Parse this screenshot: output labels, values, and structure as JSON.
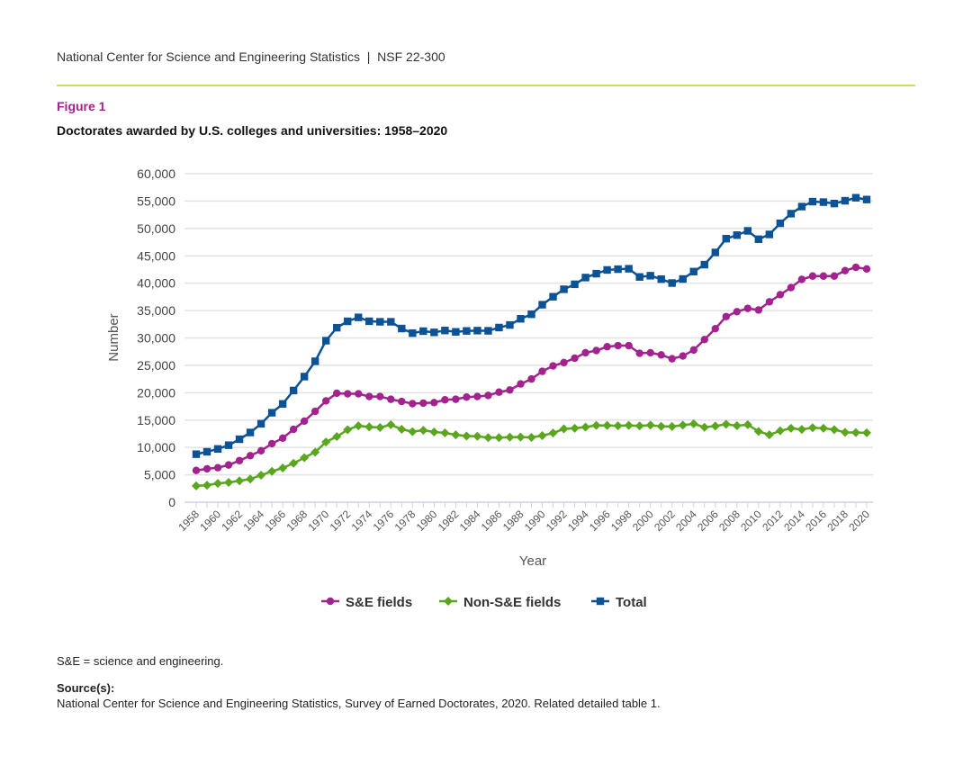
{
  "header": {
    "text": "National Center for Science and Engineering Statistics  |  NSF 22-300"
  },
  "figure": {
    "label": "Figure 1",
    "title": "Doctorates awarded by U.S. colleges and universities: 1958–2020"
  },
  "notes": {
    "abbrev": "S&E = science and engineering.",
    "source_label": "Source(s):",
    "source_text": "National Center for Science and Engineering Statistics, Survey of Earned Doctorates, 2020. Related detailed table 1."
  },
  "chart_data": {
    "type": "line",
    "xlabel": "Year",
    "ylabel": "Number",
    "ylim": [
      0,
      60000
    ],
    "xlim": [
      1958,
      2020
    ],
    "yticks": [
      "0",
      "5,000",
      "10,000",
      "15,000",
      "20,000",
      "25,000",
      "30,000",
      "35,000",
      "40,000",
      "45,000",
      "50,000",
      "55,000",
      "60,000"
    ],
    "grid": true,
    "legend_position": "bottom",
    "x_start": 1958,
    "series": [
      {
        "name": "S&E fields",
        "color": "#a3238e",
        "marker": "circle",
        "values": [
          5800,
          6100,
          6300,
          6800,
          7600,
          8500,
          9400,
          10700,
          11700,
          13300,
          14800,
          16600,
          18500,
          19900,
          19800,
          19800,
          19300,
          19300,
          18800,
          18400,
          18000,
          18100,
          18200,
          18700,
          18800,
          19200,
          19300,
          19500,
          20100,
          20500,
          21600,
          22500,
          23900,
          24900,
          25500,
          26300,
          27300,
          27700,
          28400,
          28600,
          28600,
          27200,
          27300,
          26900,
          26200,
          26700,
          27800,
          29700,
          31700,
          33900,
          34800,
          35400,
          35100,
          36600,
          37900,
          39200,
          40700,
          41300,
          41300,
          41300,
          42300,
          42900,
          42600
        ]
      },
      {
        "name": "Non-S&E fields",
        "color": "#5aa61e",
        "marker": "diamond",
        "values": [
          2970,
          3110,
          3430,
          3610,
          3900,
          4230,
          4930,
          5640,
          6250,
          7100,
          8140,
          9140,
          11000,
          11970,
          13240,
          13960,
          13750,
          13650,
          14150,
          13320,
          12880,
          13140,
          12820,
          12660,
          12310,
          12080,
          12040,
          11800,
          11800,
          11870,
          11900,
          11830,
          12170,
          12630,
          13390,
          13500,
          13730,
          14040,
          14020,
          13960,
          14040,
          13940,
          14070,
          13840,
          13830,
          14070,
          14320,
          13690,
          13920,
          14230,
          13980,
          14160,
          12930,
          12310,
          13040,
          13500,
          13290,
          13600,
          13510,
          13250,
          12760,
          12710,
          12680
        ]
      },
      {
        "name": "Total",
        "color": "#0b5394",
        "marker": "square",
        "values": [
          8770,
          9210,
          9730,
          10410,
          11500,
          12730,
          14330,
          16340,
          17950,
          20400,
          22940,
          25740,
          29500,
          31870,
          33040,
          33760,
          33050,
          32950,
          32950,
          31720,
          30880,
          31240,
          31020,
          31360,
          31110,
          31280,
          31340,
          31300,
          31900,
          32370,
          33500,
          34330,
          36070,
          37530,
          38890,
          39800,
          41030,
          41740,
          42420,
          42560,
          42640,
          41140,
          41370,
          40740,
          40030,
          40770,
          42120,
          43390,
          45620,
          48130,
          48780,
          49560,
          48030,
          48910,
          50940,
          52700,
          53990,
          54900,
          54810,
          54550,
          55060,
          55610,
          55280
        ]
      }
    ]
  }
}
